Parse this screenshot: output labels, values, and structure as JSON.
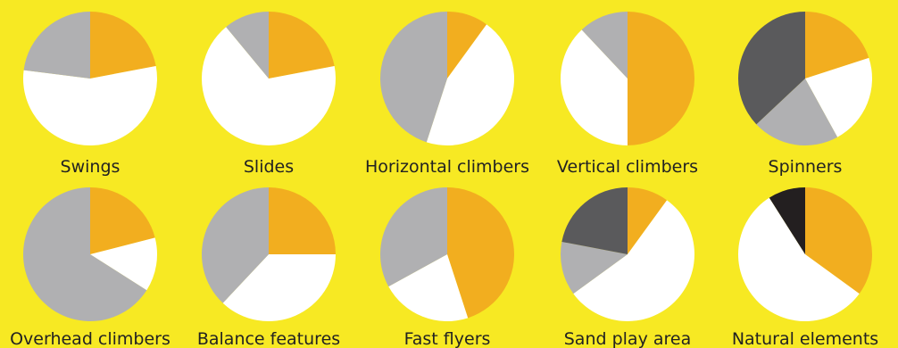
{
  "background": "#f7e923",
  "colors": {
    "orange": "#f2ae1f",
    "white": "#ffffff",
    "light-gray": "#b0b0b2",
    "dark-gray": "#5a5a5c",
    "black": "#231f20"
  },
  "chart_data": [
    {
      "type": "pie",
      "title": "Swings",
      "slices": [
        {
          "color": "orange",
          "value": 22
        },
        {
          "color": "white",
          "value": 55
        },
        {
          "color": "light-gray",
          "value": 23
        }
      ]
    },
    {
      "type": "pie",
      "title": "Slides",
      "slices": [
        {
          "color": "orange",
          "value": 22
        },
        {
          "color": "white",
          "value": 67
        },
        {
          "color": "light-gray",
          "value": 11
        }
      ]
    },
    {
      "type": "pie",
      "title": "Horizontal climbers",
      "slices": [
        {
          "color": "orange",
          "value": 10
        },
        {
          "color": "white",
          "value": 45
        },
        {
          "color": "light-gray",
          "value": 45
        }
      ]
    },
    {
      "type": "pie",
      "title": "Vertical climbers",
      "slices": [
        {
          "color": "orange",
          "value": 50
        },
        {
          "color": "white",
          "value": 38
        },
        {
          "color": "light-gray",
          "value": 12
        }
      ]
    },
    {
      "type": "pie",
      "title": "Spinners",
      "slices": [
        {
          "color": "orange",
          "value": 20
        },
        {
          "color": "white",
          "value": 22
        },
        {
          "color": "light-gray",
          "value": 21
        },
        {
          "color": "dark-gray",
          "value": 37
        }
      ]
    },
    {
      "type": "pie",
      "title": "Overhead climbers",
      "slices": [
        {
          "color": "orange",
          "value": 21
        },
        {
          "color": "white",
          "value": 13
        },
        {
          "color": "light-gray",
          "value": 66
        }
      ]
    },
    {
      "type": "pie",
      "title": "Balance features",
      "slices": [
        {
          "color": "orange",
          "value": 25
        },
        {
          "color": "white",
          "value": 37
        },
        {
          "color": "light-gray",
          "value": 38
        }
      ]
    },
    {
      "type": "pie",
      "title": "Fast flyers",
      "slices": [
        {
          "color": "orange",
          "value": 45
        },
        {
          "color": "white",
          "value": 22
        },
        {
          "color": "light-gray",
          "value": 33
        }
      ]
    },
    {
      "type": "pie",
      "title": "Sand play area",
      "slices": [
        {
          "color": "orange",
          "value": 10
        },
        {
          "color": "white",
          "value": 55
        },
        {
          "color": "light-gray",
          "value": 13
        },
        {
          "color": "dark-gray",
          "value": 22
        }
      ]
    },
    {
      "type": "pie",
      "title": "Natural elements",
      "slices": [
        {
          "color": "orange",
          "value": 35
        },
        {
          "color": "white",
          "value": 56
        },
        {
          "color": "black",
          "value": 9
        }
      ]
    }
  ]
}
